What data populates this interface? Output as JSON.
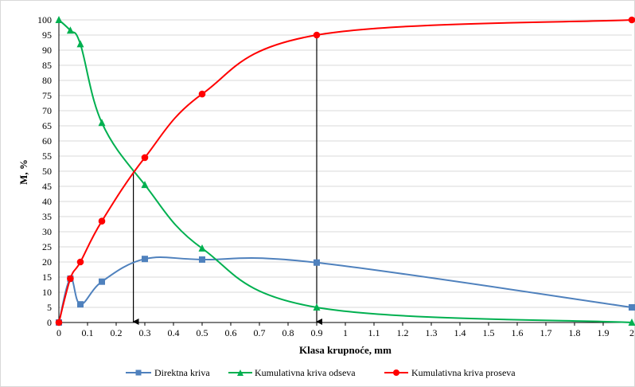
{
  "chart_data": {
    "type": "line",
    "xlabel": "Klasa krupnoće, mm",
    "ylabel": "M, %",
    "xlim": [
      0,
      2
    ],
    "ylim": [
      0,
      100
    ],
    "xticks": [
      "0",
      "0.1",
      "0.2",
      "0.3",
      "0.4",
      "0.5",
      "0.6",
      "0.7",
      "0.8",
      "0.9",
      "1",
      "1.1",
      "1.2",
      "1.3",
      "1.4",
      "1.5",
      "1.6",
      "1.7",
      "1.8",
      "1.9",
      "2"
    ],
    "yticks": [
      "0",
      "5",
      "10",
      "15",
      "20",
      "25",
      "30",
      "35",
      "40",
      "45",
      "50",
      "55",
      "60",
      "65",
      "70",
      "75",
      "80",
      "85",
      "90",
      "95",
      "100"
    ],
    "grid": "horizontal",
    "legend_position": "bottom",
    "series": [
      {
        "name": "Direktna kriva",
        "color": "#4f81bd",
        "marker": "square",
        "x": [
          0,
          0.04,
          0.075,
          0.15,
          0.3,
          0.5,
          0.9,
          2
        ],
        "y": [
          0,
          14.5,
          6,
          13.5,
          21,
          20.8,
          19.8,
          5
        ]
      },
      {
        "name": "Kumulativna kriva odseva",
        "color": "#00b050",
        "marker": "triangle",
        "x": [
          0,
          0.04,
          0.075,
          0.15,
          0.3,
          0.5,
          0.9,
          2
        ],
        "y": [
          100,
          96.5,
          92,
          66,
          45.5,
          24.5,
          5,
          0
        ]
      },
      {
        "name": "Kumulativna kriva proseva",
        "color": "#ff0000",
        "marker": "circle",
        "x": [
          0,
          0.04,
          0.075,
          0.15,
          0.3,
          0.5,
          0.9,
          2
        ],
        "y": [
          0,
          14.5,
          20,
          33.5,
          54.5,
          75.5,
          95,
          100
        ]
      }
    ],
    "annotations": [
      {
        "type": "arrow",
        "x": 0.26,
        "y_from": 50,
        "y_to": 0
      },
      {
        "type": "arrow",
        "x": 0.9,
        "y_from": 95,
        "y_to": 0
      }
    ]
  }
}
